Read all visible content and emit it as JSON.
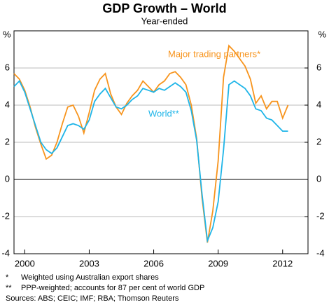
{
  "chart_data": {
    "type": "line",
    "title": "GDP Growth – World",
    "subtitle": "Year-ended",
    "y_unit": "%",
    "x": [
      1999.5,
      1999.75,
      2000,
      2000.25,
      2000.5,
      2000.75,
      2001,
      2001.25,
      2001.5,
      2001.75,
      2002,
      2002.25,
      2002.5,
      2002.75,
      2003,
      2003.25,
      2003.5,
      2003.75,
      2004,
      2004.25,
      2004.5,
      2004.75,
      2005,
      2005.25,
      2005.5,
      2005.75,
      2006,
      2006.25,
      2006.5,
      2006.75,
      2007,
      2007.25,
      2007.5,
      2007.75,
      2008,
      2008.25,
      2008.5,
      2008.75,
      2009,
      2009.25,
      2009.5,
      2009.75,
      2010,
      2010.25,
      2010.5,
      2010.75,
      2011,
      2011.25,
      2011.5,
      2011.75,
      2012,
      2012.25
    ],
    "series": [
      {
        "name": "Major trading partners*",
        "color": "#f7941d",
        "values": [
          5.7,
          5.4,
          4.8,
          3.9,
          2.8,
          1.9,
          1.1,
          1.3,
          2.0,
          3.0,
          3.9,
          4.0,
          3.4,
          2.5,
          3.6,
          4.8,
          5.4,
          5.7,
          4.6,
          3.9,
          3.5,
          4.1,
          4.5,
          4.8,
          5.3,
          5.0,
          4.7,
          5.1,
          5.3,
          5.7,
          5.8,
          5.5,
          5.1,
          4.0,
          2.2,
          -1.0,
          -3.4,
          -1.7,
          1.0,
          5.5,
          7.2,
          6.9,
          6.5,
          6.1,
          5.4,
          4.1,
          4.5,
          3.8,
          4.2,
          4.2,
          3.3,
          4.0
        ]
      },
      {
        "name": "World**",
        "color": "#1fb5e8",
        "values": [
          5.0,
          5.3,
          4.7,
          3.8,
          2.9,
          2.0,
          1.6,
          1.4,
          1.7,
          2.3,
          2.9,
          3.0,
          2.9,
          2.7,
          3.2,
          4.2,
          4.6,
          4.9,
          4.4,
          3.9,
          3.8,
          4.0,
          4.3,
          4.5,
          4.9,
          4.8,
          4.7,
          4.9,
          4.8,
          5.0,
          5.2,
          5.0,
          4.7,
          3.7,
          2.1,
          -0.8,
          -3.3,
          -2.6,
          -1.2,
          1.6,
          5.1,
          5.3,
          5.1,
          4.9,
          4.5,
          3.8,
          3.7,
          3.3,
          3.2,
          2.9,
          2.6,
          2.6
        ]
      }
    ],
    "xlim": [
      1999.5,
      2013.18
    ],
    "xticks": [
      2000,
      2003,
      2006,
      2009,
      2012
    ],
    "ylim": [
      -4,
      8
    ],
    "yticks": [
      -4,
      -2,
      0,
      2,
      4,
      6
    ],
    "y2lim": [
      -4,
      8
    ],
    "y2ticks": [
      -4,
      -2,
      0,
      2,
      4,
      6
    ],
    "grid": true,
    "notes": [
      [
        "*",
        "Weighted using Australian export shares"
      ],
      [
        "**",
        "PPP-weighted; accounts for 87 per cent of world GDP"
      ]
    ],
    "sources": "Sources: ABS; CEIC; IMF; RBA; Thomson Reuters"
  }
}
